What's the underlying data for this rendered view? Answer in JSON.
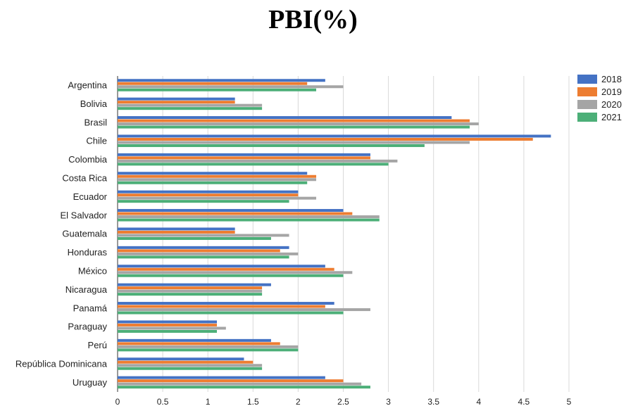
{
  "chart_data": {
    "type": "bar",
    "orientation": "horizontal",
    "title": "PBI(%)",
    "categories": [
      "Argentina",
      "Bolivia",
      "Brasil",
      "Chile",
      "Colombia",
      "Costa Rica",
      "Ecuador",
      "El Salvador",
      "Guatemala",
      "Honduras",
      "México",
      "Nicaragua",
      "Panamá",
      "Paraguay",
      "Perú",
      "República Dominicana",
      "Uruguay"
    ],
    "series": [
      {
        "name": "2018",
        "color": "#4472c4",
        "values": [
          2.3,
          1.3,
          3.7,
          4.8,
          2.8,
          2.1,
          2.0,
          2.5,
          1.3,
          1.9,
          2.3,
          1.7,
          2.4,
          1.1,
          1.7,
          1.4,
          2.3
        ]
      },
      {
        "name": "2019",
        "color": "#ed7d31",
        "values": [
          2.1,
          1.3,
          3.9,
          4.6,
          2.8,
          2.2,
          2.0,
          2.6,
          1.3,
          1.8,
          2.4,
          1.6,
          2.3,
          1.1,
          1.8,
          1.5,
          2.5
        ]
      },
      {
        "name": "2020",
        "color": "#a5a5a5",
        "values": [
          2.5,
          1.6,
          4.0,
          3.9,
          3.1,
          2.2,
          2.2,
          2.9,
          1.9,
          2.0,
          2.6,
          1.6,
          2.8,
          1.2,
          2.0,
          1.6,
          2.7
        ]
      },
      {
        "name": "2021",
        "color": "#4caf78",
        "values": [
          2.2,
          1.6,
          3.9,
          3.4,
          3.0,
          2.1,
          1.9,
          2.9,
          1.7,
          1.9,
          2.5,
          1.6,
          2.5,
          1.1,
          2.0,
          1.6,
          2.8
        ]
      }
    ],
    "xticks": [
      "0",
      "0.5",
      "1",
      "1.5",
      "2",
      "2.5",
      "3",
      "3.5",
      "4",
      "4.5",
      "5"
    ],
    "xlim": [
      0,
      5
    ],
    "grid": true,
    "legend": "right"
  }
}
